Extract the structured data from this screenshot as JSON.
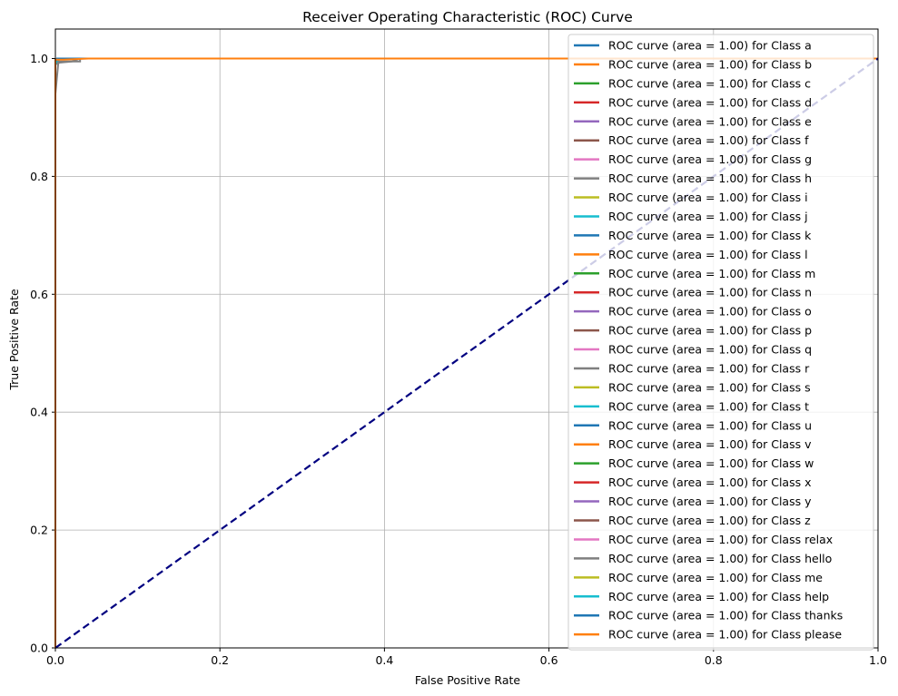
{
  "chart_data": {
    "type": "line",
    "title": "Receiver Operating Characteristic (ROC) Curve",
    "xlabel": "False Positive Rate",
    "ylabel": "True Positive Rate",
    "xlim": [
      0.0,
      1.0
    ],
    "ylim": [
      0.0,
      1.05
    ],
    "xticks": [
      0.0,
      0.2,
      0.4,
      0.6,
      0.8,
      1.0
    ],
    "yticks": [
      0.0,
      0.2,
      0.4,
      0.6,
      0.8,
      1.0
    ],
    "xtick_labels": [
      "0.0",
      "0.2",
      "0.4",
      "0.6",
      "0.8",
      "1.0"
    ],
    "ytick_labels": [
      "0.0",
      "0.2",
      "0.4",
      "0.6",
      "0.8",
      "1.0"
    ],
    "grid": true,
    "legend_position": "top-right",
    "series": [
      {
        "name": "ROC curve (area = 1.00) for Class a",
        "color": "#1f77b4",
        "x": [
          0,
          0,
          0.002,
          1
        ],
        "y": [
          0,
          0.99,
          1,
          1
        ]
      },
      {
        "name": "ROC curve (area = 1.00) for Class b",
        "color": "#ff7f0e",
        "x": [
          0,
          0,
          0.003,
          1
        ],
        "y": [
          0,
          0.99,
          1,
          1
        ]
      },
      {
        "name": "ROC curve (area = 1.00) for Class c",
        "color": "#2ca02c",
        "x": [
          0,
          0,
          0.002,
          1
        ],
        "y": [
          0,
          0.995,
          1,
          1
        ]
      },
      {
        "name": "ROC curve (area = 1.00) for Class d",
        "color": "#d62728",
        "x": [
          0,
          0,
          0.004,
          1
        ],
        "y": [
          0,
          0.99,
          1,
          1
        ]
      },
      {
        "name": "ROC curve (area = 1.00) for Class e",
        "color": "#9467bd",
        "x": [
          0,
          0,
          0.003,
          1
        ],
        "y": [
          0,
          0.995,
          1,
          1
        ]
      },
      {
        "name": "ROC curve (area = 1.00) for Class f",
        "color": "#8c564b",
        "x": [
          0,
          0,
          0.003,
          1
        ],
        "y": [
          0,
          0.99,
          1,
          1
        ]
      },
      {
        "name": "ROC curve (area = 1.00) for Class g",
        "color": "#e377c2",
        "x": [
          0,
          0,
          0.002,
          1
        ],
        "y": [
          0,
          0.995,
          1,
          1
        ]
      },
      {
        "name": "ROC curve (area = 1.00) for Class h",
        "color": "#7f7f7f",
        "x": [
          0,
          0,
          0.03,
          0.03,
          0.05,
          1
        ],
        "y": [
          0,
          0.995,
          0.995,
          1,
          1,
          1
        ]
      },
      {
        "name": "ROC curve (area = 1.00) for Class i",
        "color": "#bcbd22",
        "x": [
          0,
          0,
          0.003,
          1
        ],
        "y": [
          0,
          0.99,
          1,
          1
        ]
      },
      {
        "name": "ROC curve (area = 1.00) for Class j",
        "color": "#17becf",
        "x": [
          0,
          0,
          0.002,
          1
        ],
        "y": [
          0,
          0.995,
          1,
          1
        ]
      },
      {
        "name": "ROC curve (area = 1.00) for Class k",
        "color": "#1f77b4",
        "x": [
          0,
          0,
          0.002,
          1
        ],
        "y": [
          0,
          0.995,
          1,
          1
        ]
      },
      {
        "name": "ROC curve (area = 1.00) for Class l",
        "color": "#ff7f0e",
        "x": [
          0,
          0,
          0.003,
          1
        ],
        "y": [
          0,
          0.99,
          1,
          1
        ]
      },
      {
        "name": "ROC curve (area = 1.00) for Class m",
        "color": "#2ca02c",
        "x": [
          0,
          0,
          0.002,
          1
        ],
        "y": [
          0,
          0.995,
          1,
          1
        ]
      },
      {
        "name": "ROC curve (area = 1.00) for Class n",
        "color": "#d62728",
        "x": [
          0,
          0,
          0.003,
          1
        ],
        "y": [
          0,
          0.99,
          1,
          1
        ]
      },
      {
        "name": "ROC curve (area = 1.00) for Class o",
        "color": "#9467bd",
        "x": [
          0,
          0,
          0.002,
          1
        ],
        "y": [
          0,
          0.995,
          1,
          1
        ]
      },
      {
        "name": "ROC curve (area = 1.00) for Class p",
        "color": "#8c564b",
        "x": [
          0,
          0,
          0.002,
          1
        ],
        "y": [
          0,
          0.995,
          1,
          1
        ]
      },
      {
        "name": "ROC curve (area = 1.00) for Class q",
        "color": "#e377c2",
        "x": [
          0,
          0,
          0.003,
          1
        ],
        "y": [
          0,
          0.99,
          1,
          1
        ]
      },
      {
        "name": "ROC curve (area = 1.00) for Class r",
        "color": "#7f7f7f",
        "x": [
          0,
          0,
          0.004,
          1
        ],
        "y": [
          0,
          0.94,
          1,
          1
        ]
      },
      {
        "name": "ROC curve (area = 1.00) for Class s",
        "color": "#bcbd22",
        "x": [
          0,
          0,
          0.002,
          1
        ],
        "y": [
          0,
          0.995,
          1,
          1
        ]
      },
      {
        "name": "ROC curve (area = 1.00) for Class t",
        "color": "#17becf",
        "x": [
          0,
          0,
          0.002,
          1
        ],
        "y": [
          0,
          0.995,
          1,
          1
        ]
      },
      {
        "name": "ROC curve (area = 1.00) for Class u",
        "color": "#1f77b4",
        "x": [
          0,
          0,
          0.003,
          1
        ],
        "y": [
          0,
          0.99,
          1,
          1
        ]
      },
      {
        "name": "ROC curve (area = 1.00) for Class v",
        "color": "#ff7f0e",
        "x": [
          0,
          0,
          0.002,
          1
        ],
        "y": [
          0,
          0.995,
          1,
          1
        ]
      },
      {
        "name": "ROC curve (area = 1.00) for Class w",
        "color": "#2ca02c",
        "x": [
          0,
          0,
          0.003,
          1
        ],
        "y": [
          0,
          0.99,
          1,
          1
        ]
      },
      {
        "name": "ROC curve (area = 1.00) for Class x",
        "color": "#d62728",
        "x": [
          0,
          0,
          0.002,
          1
        ],
        "y": [
          0,
          0.995,
          1,
          1
        ]
      },
      {
        "name": "ROC curve (area = 1.00) for Class y",
        "color": "#9467bd",
        "x": [
          0,
          0,
          0.002,
          1
        ],
        "y": [
          0,
          0.995,
          1,
          1
        ]
      },
      {
        "name": "ROC curve (area = 1.00) for Class z",
        "color": "#8c564b",
        "x": [
          0,
          0,
          0.003,
          1
        ],
        "y": [
          0,
          0.99,
          1,
          1
        ]
      },
      {
        "name": "ROC curve (area = 1.00) for Class relax",
        "color": "#e377c2",
        "x": [
          0,
          0,
          0.002,
          1
        ],
        "y": [
          0,
          0.995,
          1,
          1
        ]
      },
      {
        "name": "ROC curve (area = 1.00) for Class hello",
        "color": "#7f7f7f",
        "x": [
          0,
          0,
          0.005,
          0.02,
          0.03,
          1
        ],
        "y": [
          0,
          0.99,
          0.993,
          0.995,
          1,
          1
        ]
      },
      {
        "name": "ROC curve (area = 1.00) for Class me",
        "color": "#bcbd22",
        "x": [
          0,
          0,
          0.002,
          1
        ],
        "y": [
          0,
          0.995,
          1,
          1
        ]
      },
      {
        "name": "ROC curve (area = 1.00) for Class help",
        "color": "#17becf",
        "x": [
          0,
          0,
          0.003,
          1
        ],
        "y": [
          0,
          0.99,
          1,
          1
        ]
      },
      {
        "name": "ROC curve (area = 1.00) for Class thanks",
        "color": "#1f77b4",
        "x": [
          0,
          0,
          0.002,
          1
        ],
        "y": [
          0,
          0.995,
          1,
          1
        ]
      },
      {
        "name": "ROC curve (area = 1.00) for Class please",
        "color": "#ff7f0e",
        "x": [
          0,
          0,
          0.01,
          0.04,
          1
        ],
        "y": [
          0,
          0.998,
          0.998,
          1,
          1
        ]
      }
    ],
    "reference_line": {
      "x": [
        0,
        1
      ],
      "y": [
        0,
        1
      ],
      "color": "#000080",
      "style": "dashed"
    }
  }
}
